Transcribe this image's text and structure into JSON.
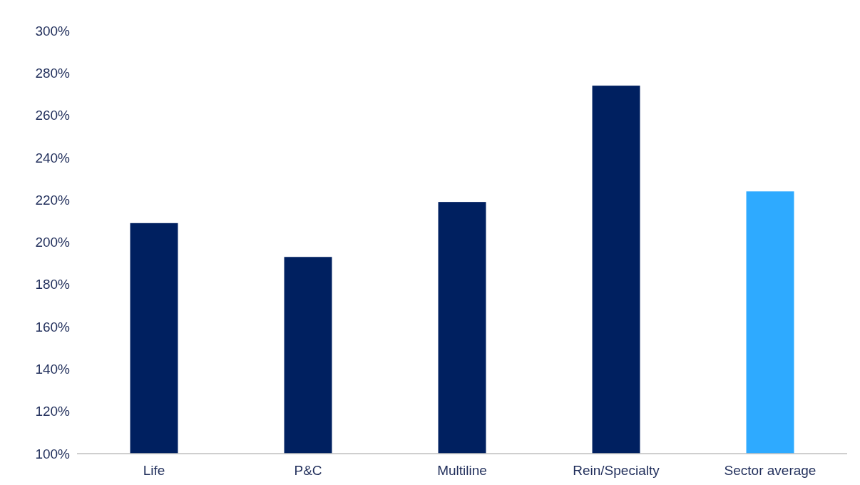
{
  "chart_data": {
    "type": "bar",
    "categories": [
      "Life",
      "P&C",
      "Multiline",
      "Rein/Specialty",
      "Sector average"
    ],
    "values": [
      209,
      193,
      219,
      274,
      224
    ],
    "colors": [
      "#002060",
      "#002060",
      "#002060",
      "#002060",
      "#2eaaff"
    ],
    "ylim": [
      100,
      300
    ],
    "yticks": [
      {
        "value": 100,
        "label": "100%"
      },
      {
        "value": 120,
        "label": "120%"
      },
      {
        "value": 140,
        "label": "140%"
      },
      {
        "value": 160,
        "label": "160%"
      },
      {
        "value": 180,
        "label": "180%"
      },
      {
        "value": 200,
        "label": "200%"
      },
      {
        "value": 220,
        "label": "220%"
      },
      {
        "value": 240,
        "label": "240%"
      },
      {
        "value": 260,
        "label": "260%"
      },
      {
        "value": 280,
        "label": "280%"
      },
      {
        "value": 300,
        "label": "300%"
      }
    ],
    "grid": false
  }
}
